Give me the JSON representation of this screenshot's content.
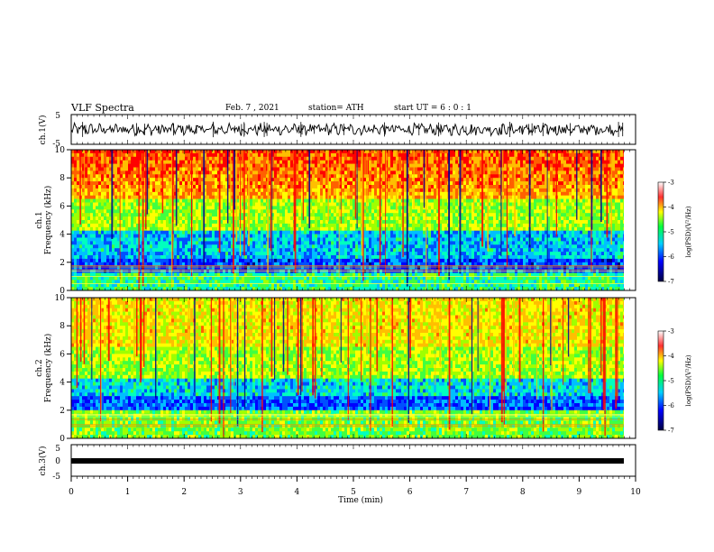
{
  "header": {
    "title": "VLF Spectra",
    "date": "Feb. 7 , 2021",
    "station": "station= ATH",
    "start_ut": "start  UT =   6 : 0  : 1"
  },
  "chart_data": [
    {
      "type": "line",
      "panel": "ch.1 waveform",
      "ylabel": "ch.1(V)",
      "ylim": [
        -5,
        5
      ],
      "yticks": [
        "5",
        "-5"
      ],
      "xlim": [
        0,
        10
      ],
      "series": [
        {
          "values": [
            -1.5,
            1.5
          ]
        }
      ]
    },
    {
      "type": "heatmap",
      "panel": "ch.1 spectrogram",
      "ylabel_lines": [
        "ch.1",
        "Frequency (kHz)"
      ],
      "ylim": [
        0,
        10
      ],
      "yticks": [
        "0",
        "2",
        "4",
        "6",
        "8",
        "10"
      ],
      "xlim": [
        0,
        10
      ],
      "colorbar": {
        "label": "log(PSD)(V²/Hz)",
        "range": [
          -7,
          -3
        ],
        "ticks": [
          "-3",
          "-4",
          "-5",
          "-6",
          "-7"
        ]
      }
    },
    {
      "type": "heatmap",
      "panel": "ch.2 spectrogram",
      "ylabel_lines": [
        "ch.2",
        "Frequency (kHz)"
      ],
      "ylim": [
        0,
        10
      ],
      "yticks": [
        "0",
        "2",
        "4",
        "6",
        "8",
        "10"
      ],
      "xlim": [
        0,
        10
      ],
      "colorbar": {
        "label": "log(PSD)(V²/Hz)",
        "range": [
          -7,
          -3
        ],
        "ticks": [
          "-3",
          "-4",
          "-5",
          "-6",
          "-7"
        ]
      }
    },
    {
      "type": "line",
      "panel": "ch.3 waveform",
      "ylabel": "ch.3(V)",
      "ylim": [
        -5,
        5
      ],
      "yticks": [
        "5",
        "0",
        "-5"
      ],
      "xlim": [
        0,
        10
      ],
      "series": [
        {
          "values": [
            -0.2,
            0.2
          ]
        }
      ]
    }
  ],
  "xaxis": {
    "label": "Time  (min)",
    "ticks": [
      "0",
      "1",
      "2",
      "3",
      "4",
      "5",
      "6",
      "7",
      "8",
      "9",
      "10"
    ]
  },
  "colors": {
    "trace": "#000000",
    "colormap": [
      "#00007f",
      "#0000ff",
      "#00bfff",
      "#00ff7f",
      "#7fff00",
      "#ffff00",
      "#ff7f00",
      "#ff0000"
    ]
  }
}
